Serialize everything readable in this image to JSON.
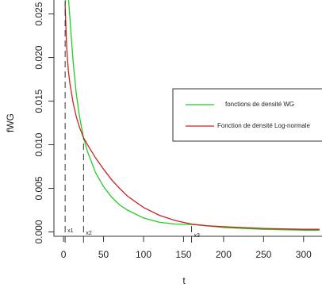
{
  "chart_data": {
    "type": "line",
    "x_label": "t",
    "y_label": "fWG",
    "x": [
      2,
      4,
      6,
      8,
      12,
      16,
      20,
      25,
      30,
      40,
      50,
      60,
      70,
      80,
      100,
      120,
      140,
      160,
      180,
      200,
      250,
      300,
      320
    ],
    "series": [
      {
        "name": "fonctions de densité WG",
        "color": "#22cc22",
        "values": [
          0.026,
          0.0285,
          0.027,
          0.0245,
          0.0195,
          0.0158,
          0.0132,
          0.0108,
          0.0092,
          0.0068,
          0.0052,
          0.004,
          0.0031,
          0.0025,
          0.0016,
          0.0011,
          0.0009,
          0.00085,
          0.0007,
          0.0005,
          0.0003,
          0.0002,
          0.0002
        ]
      },
      {
        "name": "Fonction de densité Log-normale",
        "color": "#cc2222",
        "values": [
          0.026,
          0.021,
          0.0185,
          0.017,
          0.0148,
          0.0132,
          0.012,
          0.0108,
          0.01,
          0.0085,
          0.0072,
          0.006,
          0.005,
          0.0041,
          0.0028,
          0.0019,
          0.0013,
          0.0009,
          0.0007,
          0.0006,
          0.0004,
          0.0003,
          0.0003
        ]
      }
    ],
    "markers": [
      {
        "label": "x1",
        "x": 2,
        "y": 0.0265
      },
      {
        "label": "x2",
        "x": 25,
        "y": 0.0108
      },
      {
        "label": "x3",
        "x": 160,
        "y": 0.0008
      }
    ],
    "xlim": [
      -12,
      323
    ],
    "ylim": [
      -0.0005,
      0.0266
    ],
    "xticks": [
      0,
      50,
      100,
      150,
      200,
      250,
      300
    ],
    "yticks": [
      {
        "value": 0,
        "label": "0.000"
      },
      {
        "value": 0.005,
        "label": "0.005"
      },
      {
        "value": 0.01,
        "label": "0.010"
      },
      {
        "value": 0.015,
        "label": "0.015"
      },
      {
        "value": 0.02,
        "label": "0.020"
      },
      {
        "value": 0.025,
        "label": "0.025"
      }
    ],
    "legend": "right"
  }
}
